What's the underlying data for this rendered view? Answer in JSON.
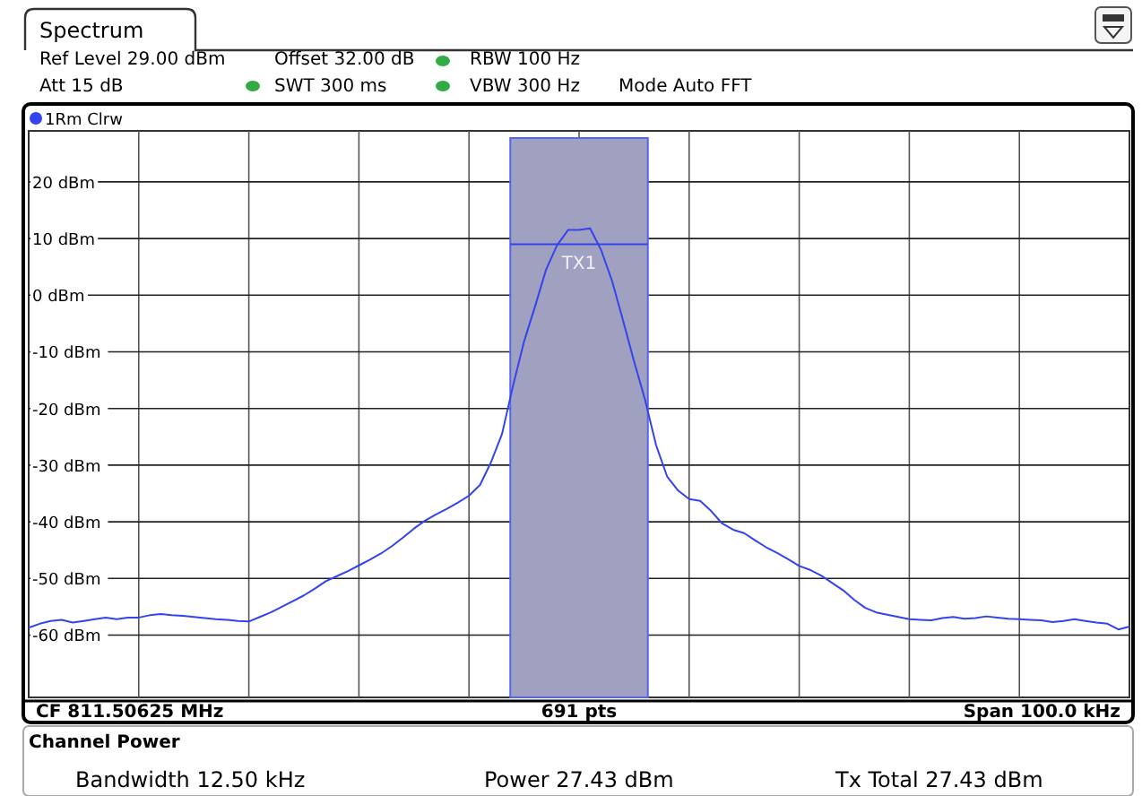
{
  "chart_data": {
    "type": "line",
    "title": "Spectrum",
    "annotations": [
      "Ref Level 29.00 dBm",
      "Offset 32.00 dB",
      "RBW 100 Hz",
      "Att 15 dB",
      "SWT 300 ms",
      "VBW 300 Hz",
      "Mode Auto FFT",
      "CF 811.50625 MHz",
      "691 pts",
      "Span 100.0 kHz",
      "Channel Power",
      "Bandwidth 12.50 kHz",
      "Power 27.43 dBm",
      "Tx Total 27.43 dBm"
    ],
    "categories": [
      null,
      null,
      null,
      null,
      null,
      null,
      null,
      null,
      null,
      null,
      null,
      null,
      null,
      null,
      null,
      null,
      null,
      null,
      null,
      null,
      null,
      null,
      null,
      null,
      null,
      null,
      null,
      null,
      null,
      null,
      null,
      null,
      null,
      null,
      null,
      null,
      null,
      null,
      null,
      null,
      null,
      null,
      null,
      null,
      null,
      null,
      null,
      null,
      null,
      null,
      null,
      null,
      null,
      null,
      null,
      null,
      null,
      null,
      null,
      null,
      null,
      null,
      null,
      null,
      null,
      null,
      null,
      null,
      null,
      null,
      null,
      null,
      null,
      null,
      null,
      null,
      null,
      null,
      null,
      null,
      null,
      null,
      null,
      null,
      null,
      null,
      null,
      null,
      null,
      null,
      null,
      null,
      null,
      null,
      null,
      null,
      null,
      null,
      null,
      null,
      null
    ],
    "ylim": [
      -71,
      29
    ],
    "yticks": [
      {
        "value": -60,
        "label": "-60 dBm"
      },
      {
        "value": -50,
        "label": "-50 dBm"
      },
      {
        "value": -40,
        "label": "-40 dBm"
      },
      {
        "value": -30,
        "label": "-30 dBm"
      },
      {
        "value": -20,
        "label": "-20 dBm"
      },
      {
        "value": -10,
        "label": "-10 dBm"
      },
      {
        "value": 0,
        "label": "0 dBm"
      },
      {
        "value": 10,
        "label": "10 dBm"
      },
      {
        "value": 20,
        "label": "20 dBm"
      }
    ],
    "grid": true,
    "legend": "top left",
    "line_style": "solid",
    "ref_lines": [
      {
        "axis": "y",
        "value": 9,
        "label": "TX1",
        "color": "#3344ee"
      }
    ],
    "series": [
      {
        "name": "1Rm Clrw",
        "color": "#3344ee",
        "values": [
          -58.7,
          -58,
          -57.5,
          -57.3,
          -57.8,
          -57.5,
          -57.2,
          -56.9,
          -57.2,
          -56.9,
          -56.9,
          -56.5,
          -56.3,
          -56.5,
          -56.6,
          -56.8,
          -57,
          -57.2,
          -57.3,
          -57.5,
          -57.6,
          -56.8,
          -56,
          -55,
          -54,
          -53,
          -51.8,
          -50.5,
          -49.6,
          -48.7,
          -47.7,
          -46.7,
          -45.6,
          -44.3,
          -42.8,
          -41.2,
          -39.8,
          -38.7,
          -37.7,
          -36.6,
          -35.4,
          -33.5,
          -29.5,
          -24.5,
          -16,
          -8.2,
          -2,
          4.5,
          8.8,
          11.5,
          11.5,
          11.8,
          8,
          2.5,
          -4.5,
          -11.7,
          -18.5,
          -26.5,
          -32,
          -34.5,
          -36,
          -36.3,
          -38.1,
          -40.3,
          -41.4,
          -42,
          -43.3,
          -44.5,
          -45.5,
          -46.6,
          -47.8,
          -48.5,
          -49.5,
          -50.8,
          -52.1,
          -53.8,
          -55.2,
          -56,
          -56.4,
          -56.8,
          -57.2,
          -57.3,
          -57.4,
          -57,
          -56.8,
          -57.1,
          -57,
          -56.7,
          -56.9,
          -57.1,
          -57.2,
          -57.3,
          -57.4,
          -57.7,
          -57.5,
          -57.2,
          -57.5,
          -57.8,
          -58,
          -59,
          -58.5
        ]
      }
    ]
  }
}
